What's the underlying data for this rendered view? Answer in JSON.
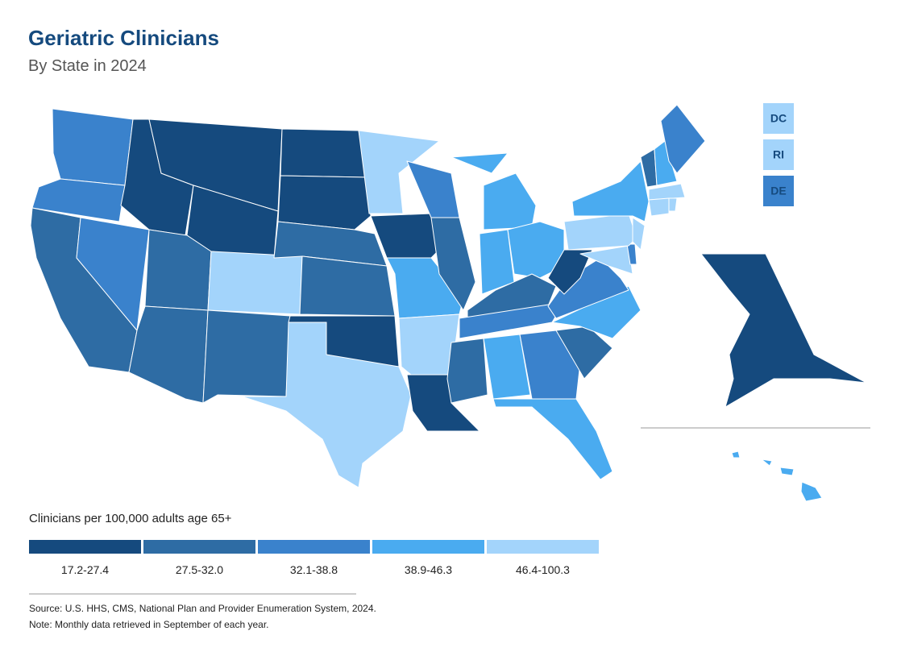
{
  "header": {
    "title": "Geriatric Clinicians",
    "subtitle": "By State in 2024"
  },
  "legend": {
    "title": "Clinicians per 100,000 adults age 65+",
    "items": [
      {
        "label": "17.2-27.4",
        "color": "#154a7e"
      },
      {
        "label": "27.5-32.0",
        "color": "#2e6ca4"
      },
      {
        "label": "32.1-38.8",
        "color": "#3a82cc"
      },
      {
        "label": "38.9-46.3",
        "color": "#4aabf0"
      },
      {
        "label": "46.4-100.3",
        "color": "#a3d4fb"
      }
    ]
  },
  "small_states": [
    {
      "label": "DC"
    },
    {
      "label": "RI"
    },
    {
      "label": "DE"
    }
  ],
  "footer": {
    "source": "Source: U.S. HHS, CMS, National Plan and Provider Enumeration System, 2024.",
    "note": "Note: Monthly data retrieved in September of each year."
  }
}
